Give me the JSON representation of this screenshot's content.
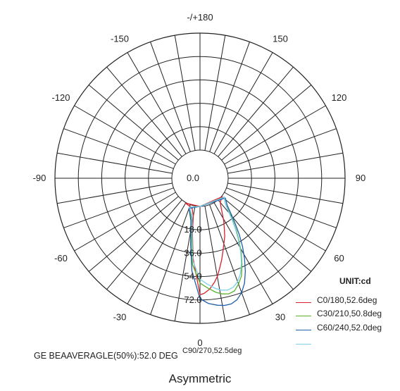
{
  "chart_data": {
    "type": "polar-line",
    "angle_labels": [
      {
        "angle": 180,
        "label": "-/+180"
      },
      {
        "angle": 150,
        "label": "150"
      },
      {
        "angle": -150,
        "label": "-150"
      },
      {
        "angle": 120,
        "label": "120"
      },
      {
        "angle": -120,
        "label": "-120"
      },
      {
        "angle": 90,
        "label": "90"
      },
      {
        "angle": -90,
        "label": "-90"
      },
      {
        "angle": 60,
        "label": "60"
      },
      {
        "angle": -60,
        "label": "-60"
      },
      {
        "angle": 30,
        "label": "30"
      },
      {
        "angle": -30,
        "label": "-30"
      },
      {
        "angle": 0,
        "label": "0"
      }
    ],
    "radial_ticks": [
      "0.0",
      "18.0",
      "36.0",
      "54.0",
      "72.0"
    ],
    "radial_max": 90,
    "grid": true,
    "angle_step_deg": 10,
    "unit_label": "UNIT:cd",
    "series": [
      {
        "name": "C0/180,52.6deg",
        "color": "#d9212b",
        "points": [
          [
            0,
            68
          ],
          [
            2,
            67
          ],
          [
            5,
            64
          ],
          [
            8,
            59
          ],
          [
            10,
            55
          ],
          [
            12,
            50
          ],
          [
            15,
            43
          ],
          [
            18,
            36
          ],
          [
            20,
            32
          ],
          [
            23,
            27
          ],
          [
            26,
            21
          ],
          [
            29,
            16
          ],
          [
            32,
            11
          ],
          [
            35,
            7
          ],
          [
            40,
            2.5
          ],
          [
            50,
            0.5
          ],
          [
            -5,
            40
          ],
          [
            -8,
            20
          ],
          [
            -10,
            8
          ],
          [
            -15,
            2
          ],
          [
            -30,
            0.5
          ]
        ]
      },
      {
        "name": "C30/210,50.8deg",
        "color": "#5bb02e",
        "points": [
          [
            0,
            59
          ],
          [
            4,
            63
          ],
          [
            8,
            67
          ],
          [
            11,
            69
          ],
          [
            14,
            70
          ],
          [
            17,
            69
          ],
          [
            20,
            65
          ],
          [
            23,
            60
          ],
          [
            26,
            52
          ],
          [
            29,
            44
          ],
          [
            32,
            35
          ],
          [
            35,
            27
          ],
          [
            38,
            19
          ],
          [
            41,
            12
          ],
          [
            45,
            6
          ],
          [
            52,
            2
          ],
          [
            -5,
            45
          ],
          [
            -8,
            25
          ],
          [
            -12,
            10
          ],
          [
            -20,
            2
          ]
        ]
      },
      {
        "name": "C60/240,52.0deg",
        "color": "#1f5ea8",
        "points": [
          [
            0,
            71
          ],
          [
            4,
            75
          ],
          [
            8,
            77
          ],
          [
            11,
            78
          ],
          [
            14,
            78
          ],
          [
            17,
            76
          ],
          [
            20,
            72
          ],
          [
            23,
            66
          ],
          [
            26,
            58
          ],
          [
            29,
            49
          ],
          [
            32,
            40
          ],
          [
            35,
            31
          ],
          [
            38,
            22
          ],
          [
            41,
            15
          ],
          [
            45,
            8
          ],
          [
            52,
            3
          ],
          [
            -5,
            50
          ],
          [
            -8,
            30
          ],
          [
            -12,
            12
          ],
          [
            -20,
            3
          ]
        ]
      },
      {
        "name": "C90/270,52.5deg",
        "color": "#7fd0e8",
        "points": [
          [
            0,
            56
          ],
          [
            4,
            60
          ],
          [
            8,
            64
          ],
          [
            11,
            66
          ],
          [
            14,
            67
          ],
          [
            17,
            66
          ],
          [
            20,
            63
          ],
          [
            23,
            58
          ],
          [
            26,
            51
          ],
          [
            29,
            43
          ],
          [
            32,
            34
          ],
          [
            35,
            26
          ],
          [
            38,
            18
          ],
          [
            41,
            11
          ],
          [
            45,
            6
          ],
          [
            52,
            2
          ],
          [
            -5,
            42
          ],
          [
            -8,
            22
          ],
          [
            -12,
            8
          ],
          [
            -20,
            2
          ]
        ]
      }
    ]
  },
  "legend": {
    "title": "UNIT:cd",
    "items": [
      {
        "label": "C0/180,52.6deg",
        "color": "#d9212b"
      },
      {
        "label": "C30/210,50.8deg",
        "color": "#5bb02e"
      },
      {
        "label": "C60/240,52.0deg",
        "color": "#1f5ea8"
      },
      {
        "label": "",
        "color": "#7fd0e8"
      }
    ]
  },
  "footer": {
    "beam_angle": "GE BEAAVERAGLE(50%):52.0 DEG",
    "c90_series": "C90/270,52.5deg"
  },
  "subtitle": "Asymmetric"
}
